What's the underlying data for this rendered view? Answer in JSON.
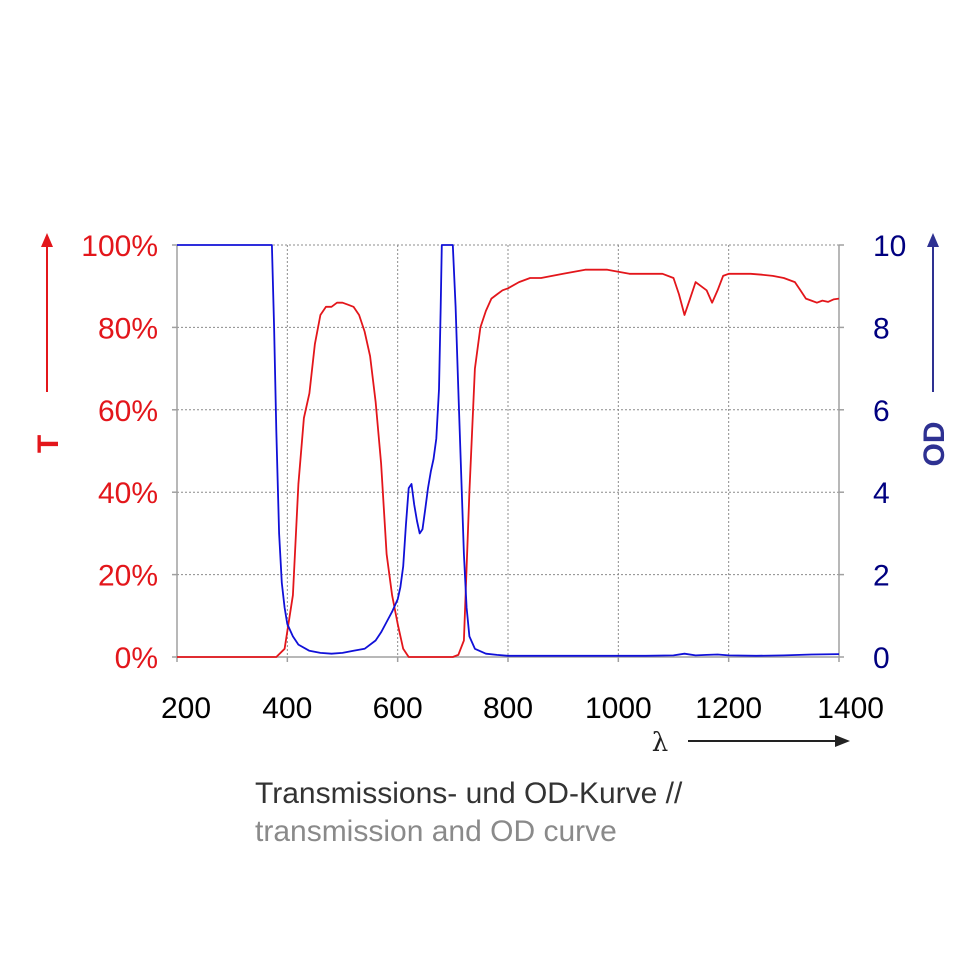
{
  "chart_data": {
    "type": "line",
    "title": "",
    "xlabel": "λ",
    "ylabel_left": "T",
    "ylabel_right": "OD",
    "xlim": [
      200,
      1400
    ],
    "ylim_left": [
      0,
      100
    ],
    "ylim_right": [
      0,
      10
    ],
    "x_ticks": [
      "200",
      "400",
      "600",
      "800",
      "1000",
      "1200",
      "1400"
    ],
    "y_left_ticks": [
      "0%",
      "20%",
      "40%",
      "60%",
      "80%",
      "100%"
    ],
    "y_right_ticks": [
      "0",
      "2",
      "4",
      "6",
      "8",
      "10"
    ],
    "grid": true,
    "grid_style": "dotted",
    "colors": {
      "transmission": "#e3161b",
      "od": "#1010d8",
      "right_axis_label": "#2e3192",
      "left_axis": "#e3161b",
      "right_axis": "#000080"
    },
    "series": [
      {
        "axis": "left",
        "color": "#e3161b",
        "x": [
          200,
          380,
          395,
          410,
          420,
          430,
          440,
          450,
          460,
          470,
          480,
          490,
          500,
          510,
          520,
          530,
          540,
          550,
          560,
          570,
          580,
          590,
          600,
          610,
          620,
          640,
          660,
          680,
          700,
          710,
          720,
          730,
          740,
          750,
          760,
          770,
          780,
          790,
          800,
          820,
          840,
          860,
          880,
          900,
          920,
          940,
          960,
          980,
          1000,
          1020,
          1040,
          1060,
          1080,
          1100,
          1110,
          1120,
          1130,
          1140,
          1150,
          1160,
          1170,
          1180,
          1190,
          1200,
          1220,
          1240,
          1260,
          1280,
          1300,
          1320,
          1330,
          1340,
          1350,
          1360,
          1370,
          1380,
          1390,
          1400
        ],
        "y": [
          0,
          0,
          2,
          15,
          42,
          58,
          64,
          76,
          83,
          85,
          85,
          86,
          86,
          85.5,
          85,
          83,
          79,
          73,
          62,
          47,
          25,
          15,
          8,
          2,
          0,
          0,
          0,
          0,
          0,
          0.5,
          4,
          40,
          70,
          80,
          84,
          87,
          88,
          89,
          89.5,
          91,
          92,
          92,
          92.5,
          93,
          93.5,
          94,
          94,
          94,
          93.5,
          93,
          93,
          93,
          93,
          92,
          88,
          83,
          87,
          91,
          90,
          89,
          86,
          89,
          92.5,
          93,
          93,
          93,
          92.8,
          92.5,
          92,
          91,
          89,
          87,
          86.5,
          86,
          86.5,
          86.2,
          86.8,
          87
        ]
      },
      {
        "axis": "right",
        "color": "#1010d8",
        "x": [
          200,
          372,
          376,
          380,
          385,
          390,
          395,
          400,
          410,
          420,
          440,
          460,
          480,
          500,
          520,
          540,
          560,
          570,
          580,
          590,
          600,
          605,
          610,
          615,
          620,
          625,
          630,
          635,
          640,
          645,
          650,
          655,
          660,
          665,
          670,
          675,
          678,
          680,
          700,
          705,
          710,
          715,
          720,
          725,
          730,
          740,
          760,
          780,
          800,
          850,
          900,
          950,
          1000,
          1050,
          1100,
          1120,
          1140,
          1160,
          1180,
          1200,
          1250,
          1300,
          1350,
          1400
        ],
        "y": [
          10,
          10,
          8,
          5.5,
          3,
          1.8,
          1.2,
          0.8,
          0.5,
          0.3,
          0.15,
          0.1,
          0.08,
          0.1,
          0.15,
          0.2,
          0.4,
          0.6,
          0.85,
          1.1,
          1.4,
          1.7,
          2.2,
          3.2,
          4.1,
          4.2,
          3.7,
          3.3,
          3.0,
          3.1,
          3.6,
          4.1,
          4.5,
          4.8,
          5.3,
          6.5,
          8.5,
          10,
          10,
          8.5,
          6.5,
          4.5,
          2.5,
          1.2,
          0.5,
          0.2,
          0.08,
          0.05,
          0.03,
          0.03,
          0.03,
          0.03,
          0.03,
          0.03,
          0.04,
          0.08,
          0.04,
          0.05,
          0.06,
          0.04,
          0.03,
          0.04,
          0.06,
          0.07
        ]
      }
    ]
  },
  "caption": {
    "line1": "Transmissions- und OD-Kurve //",
    "line2": "transmission and OD curve"
  }
}
